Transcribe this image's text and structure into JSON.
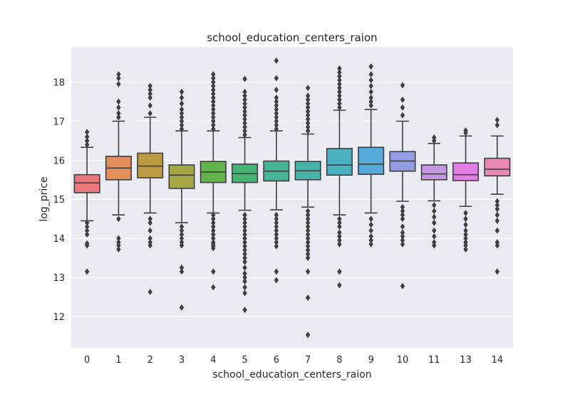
{
  "chart_data": {
    "type": "box",
    "title": "school_education_centers_raion",
    "xlabel": "school_education_centers_raion",
    "ylabel": "log_price",
    "ylim": [
      11.2,
      18.9
    ],
    "yticks": [
      12,
      13,
      14,
      15,
      16,
      17,
      18
    ],
    "grid": true,
    "background": "#eaeaf2",
    "categories": [
      "0",
      "1",
      "2",
      "3",
      "4",
      "5",
      "6",
      "7",
      "8",
      "9",
      "10",
      "11",
      "13",
      "14"
    ],
    "colors": [
      "#e8787c",
      "#e38e5a",
      "#bb9a44",
      "#a4a744",
      "#64b44e",
      "#46b273",
      "#47b595",
      "#49b2a8",
      "#4bb1c0",
      "#54a9d9",
      "#949ee6",
      "#c796e3",
      "#e37ee4",
      "#e787b3"
    ],
    "boxes": [
      {
        "whisker_low": 14.45,
        "q1": 15.17,
        "median": 15.42,
        "q3": 15.63,
        "whisker_high": 16.33,
        "outliers": [
          13.15,
          13.82,
          13.87,
          14.1,
          14.2,
          14.3,
          14.4,
          16.4,
          16.5,
          16.6,
          16.72
        ]
      },
      {
        "whisker_low": 14.6,
        "q1": 15.5,
        "median": 15.8,
        "q3": 16.1,
        "whisker_high": 17.0,
        "outliers": [
          13.72,
          13.82,
          13.9,
          14.0,
          14.5,
          17.1,
          17.2,
          17.35,
          17.5,
          17.95,
          18.1,
          18.2
        ]
      },
      {
        "whisker_low": 14.65,
        "q1": 15.55,
        "median": 15.85,
        "q3": 16.18,
        "whisker_high": 17.1,
        "outliers": [
          12.63,
          13.82,
          13.9,
          14.0,
          14.2,
          14.4,
          14.5,
          17.2,
          17.4,
          17.6,
          17.7,
          17.8,
          17.9
        ]
      },
      {
        "whisker_low": 14.4,
        "q1": 15.28,
        "median": 15.62,
        "q3": 15.88,
        "whisker_high": 16.75,
        "outliers": [
          12.23,
          13.15,
          13.25,
          13.82,
          13.9,
          14.0,
          14.1,
          14.2,
          14.3,
          16.8,
          16.9,
          17.0,
          17.1,
          17.2,
          17.3,
          17.45,
          17.6,
          17.75
        ]
      },
      {
        "whisker_low": 14.65,
        "q1": 15.43,
        "median": 15.7,
        "q3": 15.97,
        "whisker_high": 16.75,
        "outliers": [
          12.75,
          13.15,
          13.75,
          13.8,
          13.85,
          13.9,
          14.0,
          14.1,
          14.2,
          14.3,
          14.4,
          14.5,
          14.6,
          16.8,
          16.9,
          17.0,
          17.1,
          17.2,
          17.3,
          17.4,
          17.5,
          17.6,
          17.7,
          17.8,
          17.9,
          18.0,
          18.1,
          18.2
        ]
      },
      {
        "whisker_low": 14.72,
        "q1": 15.43,
        "median": 15.66,
        "q3": 15.9,
        "whisker_high": 16.58,
        "outliers": [
          12.17,
          12.6,
          12.75,
          12.9,
          13.0,
          13.1,
          13.25,
          13.4,
          13.5,
          13.6,
          13.7,
          13.8,
          13.9,
          14.0,
          14.1,
          14.2,
          14.3,
          14.4,
          14.5,
          14.6,
          16.65,
          16.75,
          16.85,
          16.95,
          17.05,
          17.15,
          17.25,
          17.35,
          17.45,
          17.55,
          17.65,
          17.75,
          18.08
        ]
      },
      {
        "whisker_low": 14.73,
        "q1": 15.47,
        "median": 15.72,
        "q3": 15.98,
        "whisker_high": 16.75,
        "outliers": [
          12.93,
          13.15,
          13.8,
          13.9,
          14.0,
          14.1,
          14.2,
          14.3,
          14.4,
          14.5,
          14.6,
          16.8,
          16.9,
          17.0,
          17.1,
          17.2,
          17.3,
          17.4,
          17.5,
          17.6,
          17.8,
          18.1,
          18.55
        ]
      },
      {
        "whisker_low": 14.8,
        "q1": 15.5,
        "median": 15.73,
        "q3": 15.97,
        "whisker_high": 16.67,
        "outliers": [
          11.53,
          12.48,
          13.15,
          13.5,
          13.6,
          13.7,
          13.8,
          13.9,
          14.0,
          14.1,
          14.2,
          14.3,
          14.4,
          14.5,
          14.6,
          14.7,
          16.75,
          16.85,
          16.95,
          17.05,
          17.15,
          17.25,
          17.35,
          17.45,
          17.55,
          17.65,
          17.85
        ]
      },
      {
        "whisker_low": 14.6,
        "q1": 15.62,
        "median": 15.88,
        "q3": 16.3,
        "whisker_high": 17.28,
        "outliers": [
          12.8,
          13.15,
          13.85,
          13.95,
          14.05,
          14.15,
          14.3,
          14.4,
          14.5,
          17.35,
          17.45,
          17.55,
          17.65,
          17.75,
          17.85,
          17.95,
          18.05,
          18.15,
          18.25,
          18.35
        ]
      },
      {
        "whisker_low": 14.65,
        "q1": 15.64,
        "median": 15.9,
        "q3": 16.33,
        "whisker_high": 17.3,
        "outliers": [
          13.85,
          13.95,
          14.05,
          14.2,
          14.35,
          14.5,
          17.4,
          17.5,
          17.6,
          17.75,
          17.9,
          18.05,
          18.2,
          18.4
        ]
      },
      {
        "whisker_low": 14.95,
        "q1": 15.72,
        "median": 15.98,
        "q3": 16.22,
        "whisker_high": 17.0,
        "outliers": [
          12.78,
          13.85,
          13.95,
          14.05,
          14.15,
          14.3,
          14.5,
          14.6,
          14.7,
          14.8,
          17.15,
          17.35,
          17.55,
          17.92
        ]
      },
      {
        "whisker_low": 14.96,
        "q1": 15.5,
        "median": 15.65,
        "q3": 15.88,
        "whisker_high": 16.43,
        "outliers": [
          13.82,
          13.9,
          14.05,
          14.2,
          14.4,
          14.55,
          14.7,
          14.85,
          16.5,
          16.58
        ]
      },
      {
        "whisker_low": 14.82,
        "q1": 15.48,
        "median": 15.63,
        "q3": 15.93,
        "whisker_high": 16.62,
        "outliers": [
          13.72,
          13.82,
          13.9,
          14.0,
          14.1,
          14.2,
          14.35,
          14.5,
          14.65,
          16.7,
          16.76
        ]
      },
      {
        "whisker_low": 15.13,
        "q1": 15.6,
        "median": 15.77,
        "q3": 16.05,
        "whisker_high": 16.62,
        "outliers": [
          13.15,
          13.82,
          13.9,
          14.2,
          14.45,
          14.6,
          14.75,
          14.85,
          14.95,
          16.9,
          17.03
        ]
      }
    ]
  }
}
